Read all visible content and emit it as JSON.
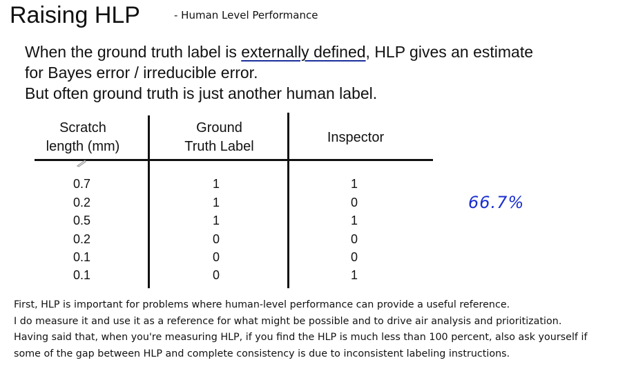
{
  "slide": {
    "title": "Raising HLP",
    "subtitle": "- Human Level Performance",
    "lines": [
      {
        "before": "When the ground truth label is ",
        "underlined": "externally defined",
        "after": ", HLP gives an estimate"
      },
      {
        "text": "for Bayes error / irreducible error."
      },
      {
        "text": "But often ground truth is just another human label."
      }
    ],
    "table": {
      "headers": {
        "scratch_line1": "Scratch",
        "scratch_line2": "length (mm)",
        "ground_line1": "Ground",
        "ground_line2": "Truth Label",
        "inspector": "Inspector"
      },
      "rows": [
        {
          "scratch": "0.7",
          "ground": "1",
          "inspector": "1"
        },
        {
          "scratch": "0.2",
          "ground": "1",
          "inspector": "0"
        },
        {
          "scratch": "0.5",
          "ground": "1",
          "inspector": "1"
        },
        {
          "scratch": "0.2",
          "ground": "0",
          "inspector": "0"
        },
        {
          "scratch": "0.1",
          "ground": "0",
          "inspector": "0"
        },
        {
          "scratch": "0.1",
          "ground": "0",
          "inspector": "1"
        }
      ]
    },
    "annotation": "66.7%",
    "annotation_color": "#1b2fd1"
  },
  "notes": [
    "First, HLP is important for problems where human-level performance can provide a useful reference.",
    "I do measure it and use it as a reference for what might be possible and to drive air analysis and prioritization.",
    "Having said that, when you're measuring HLP, if you find the HLP is much less than 100 percent, also ask yourself if",
    "some of the gap between HLP and complete consistency is due to inconsistent labeling instructions."
  ]
}
